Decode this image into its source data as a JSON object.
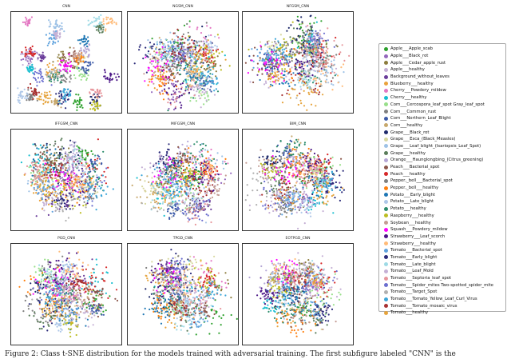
{
  "chart_data": [
    {
      "type": "scatter",
      "title": "CNN"
    },
    {
      "type": "scatter",
      "title": "NGSM_CNN"
    },
    {
      "type": "scatter",
      "title": "NFGSM_CNN"
    },
    {
      "type": "scatter",
      "title": "IFFGSM_CNN"
    },
    {
      "type": "scatter",
      "title": "MIFGSM_CNN"
    },
    {
      "type": "scatter",
      "title": "BIM_CNN"
    },
    {
      "type": "scatter",
      "title": "PGD_CNN"
    },
    {
      "type": "scatter",
      "title": "TPGD_CNN"
    },
    {
      "type": "scatter",
      "title": "EOTPGD_CNN"
    }
  ],
  "legend": [
    {
      "label": "Apple___Apple_scab",
      "color": "#2ca02c"
    },
    {
      "label": "Apple___Black_rot",
      "color": "#9467bd"
    },
    {
      "label": "Apple___Cedar_apple_rust",
      "color": "#8c7c3c"
    },
    {
      "label": "Apple___healthy",
      "color": "#c5b0d5"
    },
    {
      "label": "Background_without_leaves",
      "color": "#6a3d9a"
    },
    {
      "label": "Blueberry___healthy",
      "color": "#e9a23b"
    },
    {
      "label": "Cherry___Powdery_mildew",
      "color": "#e377c2"
    },
    {
      "label": "Cherry___healthy",
      "color": "#17becf"
    },
    {
      "label": "Corn___Cercospora_leaf_spot Gray_leaf_spot",
      "color": "#98df8a"
    },
    {
      "label": "Corn___Common_rust",
      "color": "#7f7f7f"
    },
    {
      "label": "Corn___Northern_Leaf_Blight",
      "color": "#3d5ba8"
    },
    {
      "label": "Corn___healthy",
      "color": "#c7a86c"
    },
    {
      "label": "Grape___Black_rot",
      "color": "#1f2a6b"
    },
    {
      "label": "Grape___Esca_(Black_Measles)",
      "color": "#d8d8a0"
    },
    {
      "label": "Grape___Leaf_blight_(Isariopsis_Leaf_Spot)",
      "color": "#9ec2e6"
    },
    {
      "label": "Grape___healthy",
      "color": "#5a7d5a"
    },
    {
      "label": "Orange___Haunglongbing_(Citrus_greening)",
      "color": "#b5a6d6"
    },
    {
      "label": "Peach___Bacterial_spot",
      "color": "#8c564b"
    },
    {
      "label": "Peach___healthy",
      "color": "#d62728"
    },
    {
      "label": "Pepper,_bell___Bacterial_spot",
      "color": "#7f7f7f"
    },
    {
      "label": "Pepper,_bell___healthy",
      "color": "#ff7f0e"
    },
    {
      "label": "Potato___Early_blight",
      "color": "#1f77b4"
    },
    {
      "label": "Potato___Late_blight",
      "color": "#aec7e8"
    },
    {
      "label": "Potato___healthy",
      "color": "#2c8c6c"
    },
    {
      "label": "Raspberry___healthy",
      "color": "#bcbd22"
    },
    {
      "label": "Soybean___healthy",
      "color": "#c49c94"
    },
    {
      "label": "Squash___Powdery_mildew",
      "color": "#ff00ff"
    },
    {
      "label": "Strawberry___Leaf_scorch",
      "color": "#4a1486"
    },
    {
      "label": "Strawberry___healthy",
      "color": "#ffbb78"
    },
    {
      "label": "Tomato___Bacterial_spot",
      "color": "#5fa2dd"
    },
    {
      "label": "Tomato___Early_blight",
      "color": "#2b2b7a"
    },
    {
      "label": "Tomato___Late_blight",
      "color": "#9edae5"
    },
    {
      "label": "Tomato___Leaf_Mold",
      "color": "#c5b0d5"
    },
    {
      "label": "Tomato___Septoria_leaf_spot",
      "color": "#e7969c"
    },
    {
      "label": "Tomato___Spider_mites Two-spotted_spider_mite",
      "color": "#6b6ecf"
    },
    {
      "label": "Tomato___Target_Spot",
      "color": "#b0b0b0"
    },
    {
      "label": "Tomato___Tomato_Yellow_Leaf_Curl_Virus",
      "color": "#3ca6d8"
    },
    {
      "label": "Tomato___Tomato_mosaic_virus",
      "color": "#a83232"
    },
    {
      "label": "Tomato___healthy",
      "color": "#e5a33b"
    }
  ],
  "caption": "Figure 2: Class t-SNE distribution for the models trained with adversarial training. The first subfigure labeled \"CNN\" is the"
}
